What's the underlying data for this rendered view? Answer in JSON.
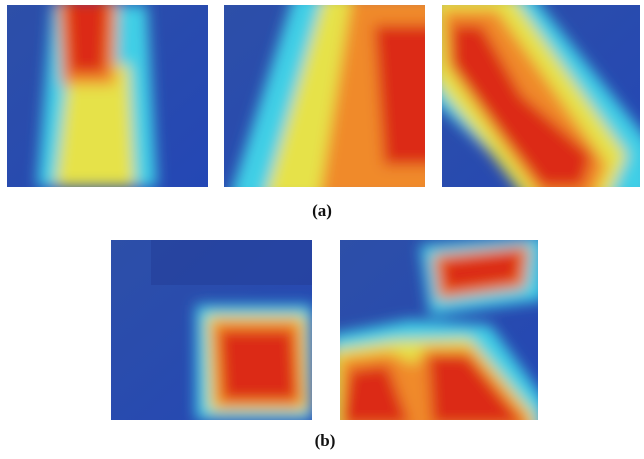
{
  "panels": {
    "a": {
      "caption": "(a)"
    },
    "b": {
      "caption": "(b)"
    }
  }
}
